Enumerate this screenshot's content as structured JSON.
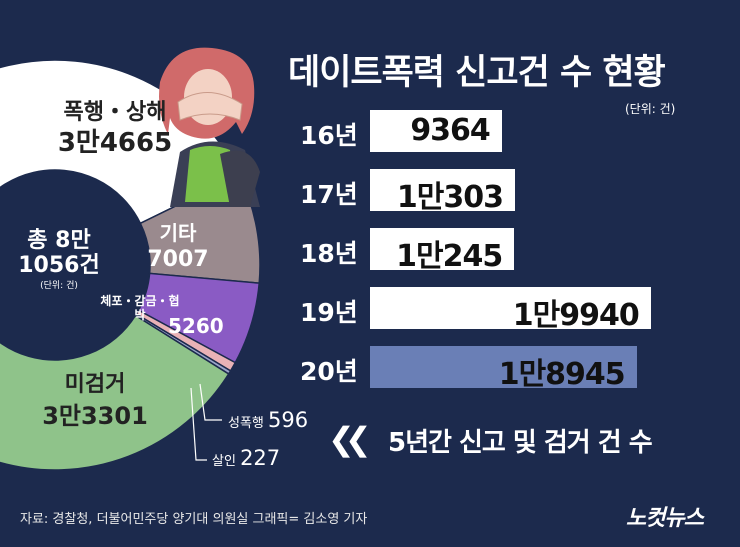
{
  "chart_data": [
    {
      "type": "pie",
      "title": "",
      "center_label": {
        "line1": "총 8만",
        "line2": "1056건",
        "unit": "(단위: 건)"
      },
      "slices": [
        {
          "label": "폭행・상해",
          "value_text": "3만4665",
          "value": 34665,
          "color": "#ffffff"
        },
        {
          "label": "기타",
          "value_text": "7007",
          "value": 7007,
          "color": "#9a8a8e"
        },
        {
          "label": "체포・감금・협박",
          "value_text": "5260",
          "value": 5260,
          "color": "#8a5bc4"
        },
        {
          "label": "성폭행",
          "value_text": "596",
          "value": 596,
          "color": "#e9b2b6"
        },
        {
          "label": "살인",
          "value_text": "227",
          "value": 227,
          "color": "#9aa4c9"
        },
        {
          "label": "미검거",
          "value_text": "3만3301",
          "value": 33301,
          "color": "#8fc38a"
        }
      ]
    },
    {
      "type": "bar",
      "title": "데이트폭력 신고건 수 현황",
      "unit": "(단위: 건)",
      "categories": [
        "16년",
        "17년",
        "18년",
        "19년",
        "20년"
      ],
      "values": [
        9364,
        10303,
        10245,
        19940,
        18945
      ],
      "value_labels": [
        "9364",
        "1만303",
        "1만245",
        "1만9940",
        "1만8945"
      ],
      "bar_colors": [
        "#ffffff",
        "#ffffff",
        "#ffffff",
        "#ffffff",
        "#6a7fb6"
      ],
      "xlim": [
        0,
        20600
      ]
    }
  ],
  "legend_note": {
    "text": "5년간 신고 및 검거 건 수"
  },
  "footer": {
    "source": "자료: 경찰청, 더불어민주당 양기대 의원실   그래픽= 김소영 기자"
  },
  "logo": {
    "text": "노컷뉴스"
  },
  "colors": {
    "background": "#1c2a4d",
    "bar_text": "#111111"
  }
}
